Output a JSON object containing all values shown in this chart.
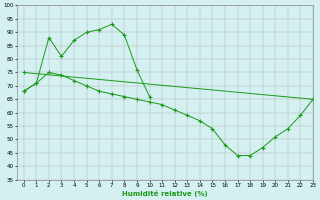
{
  "x": [
    0,
    1,
    2,
    3,
    4,
    5,
    6,
    7,
    8,
    9,
    10,
    11,
    12,
    13,
    14,
    15,
    16,
    17,
    18,
    19,
    20,
    21,
    22,
    23
  ],
  "line1_x": [
    0,
    1,
    2,
    3,
    4,
    5,
    6,
    7,
    8,
    9,
    10
  ],
  "line1_y": [
    68,
    71,
    88,
    81,
    87,
    90,
    91,
    93,
    89,
    76,
    66
  ],
  "line2_x": [
    0,
    1,
    2,
    3,
    4,
    5,
    6,
    7,
    8,
    9,
    10,
    11,
    12,
    13,
    14,
    15,
    16,
    17,
    18,
    19,
    20,
    21,
    22,
    23
  ],
  "line2_y": [
    68,
    71,
    75,
    74,
    72,
    70,
    68,
    67,
    66,
    65,
    64,
    63,
    61,
    59,
    57,
    54,
    48,
    44,
    44,
    47,
    51,
    54,
    59,
    65
  ],
  "line3_x": [
    0,
    23
  ],
  "line3_y": [
    75,
    65
  ],
  "line_color": "#1a9918",
  "bg_color": "#d4f0f0",
  "grid_color": "#b0b0b0",
  "xlabel": "Humidité relative (%)",
  "ylim": [
    35,
    100
  ],
  "xlim": [
    -0.5,
    23
  ],
  "yticks": [
    35,
    40,
    45,
    50,
    55,
    60,
    65,
    70,
    75,
    80,
    85,
    90,
    95,
    100
  ],
  "xticks": [
    0,
    1,
    2,
    3,
    4,
    5,
    6,
    7,
    8,
    9,
    10,
    11,
    12,
    13,
    14,
    15,
    16,
    17,
    18,
    19,
    20,
    21,
    22,
    23
  ]
}
